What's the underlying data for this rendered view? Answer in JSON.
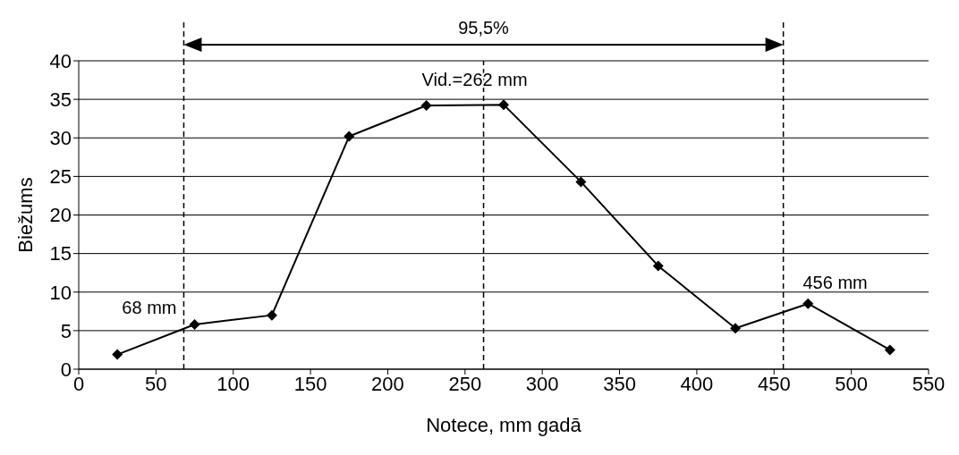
{
  "chart_data": {
    "type": "line",
    "xlabel": "Notece, mm gadā",
    "ylabel": "Biežums",
    "x": [
      25,
      75,
      125,
      175,
      225,
      275,
      325,
      375,
      425,
      472,
      525
    ],
    "series": [
      {
        "color": "#000000",
        "values": [
          1.9,
          5.8,
          7.0,
          30.2,
          34.2,
          34.3,
          24.3,
          13.4,
          5.3,
          8.5,
          2.5
        ]
      }
    ],
    "xlim": [
      0,
      550
    ],
    "xticks": [
      0,
      50,
      100,
      150,
      200,
      250,
      300,
      350,
      400,
      450,
      500,
      550
    ],
    "ylim": [
      0,
      40
    ],
    "yticks": [
      0,
      5,
      10,
      15,
      20,
      25,
      30,
      35,
      40
    ],
    "grid": "y",
    "marker": "diamond",
    "line_style": "solid",
    "legend": false,
    "ref_lines": [
      {
        "axis": "x",
        "value": 68,
        "label": "68 mm",
        "line_style": "dashed"
      },
      {
        "axis": "x",
        "value": 262,
        "label": "Vid.=262 mm",
        "line_style": "dashed"
      },
      {
        "axis": "x",
        "value": 456,
        "label": "456 mm",
        "line_style": "dashed"
      }
    ],
    "annotations": [
      "95,5%"
    ]
  }
}
